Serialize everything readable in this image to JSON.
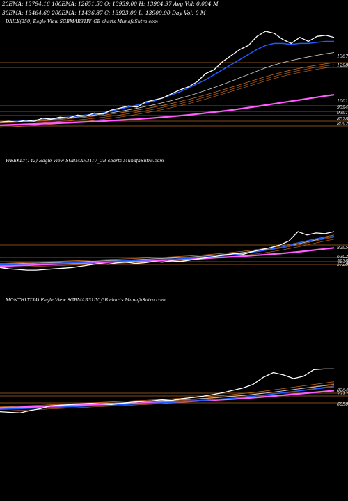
{
  "header": {
    "line1": "20EMA: 13794.16   100EMA: 12651.53   O: 13939.00   H: 13984.97  Avg Vol: 0.004 M",
    "line2": "30EMA: 13464.69   200EMA: 11436.87   C: 13923.00   L: 13900.00   Day Vol: 0  M"
  },
  "colors": {
    "background": "#000000",
    "price": "#ffffff",
    "ema_blue": "#1e5bff",
    "ema_magenta": "#ff5cff",
    "ema_band": "#c86a1e",
    "ema_light": "#d8d8d8",
    "level_line": "#b0661e"
  },
  "chart_data": [
    {
      "type": "line",
      "title": "DAILY(250) Eagle  View  SGBMAR31IV_GB charts MunafaSutra.com",
      "levels": [
        "1367",
        "1298",
        "1001",
        "9594",
        "9391",
        "8528",
        "8092"
      ],
      "series": [
        {
          "role": "price",
          "values": [
            10,
            11,
            10,
            12,
            11,
            14,
            13,
            15,
            14,
            17,
            16,
            19,
            18,
            22,
            24,
            26,
            25,
            30,
            32,
            34,
            38,
            42,
            45,
            50,
            58,
            62,
            70,
            76,
            82,
            86,
            95,
            100,
            98,
            92,
            88,
            94,
            90,
            95,
            96,
            94
          ]
        },
        {
          "role": "ema-blue",
          "values": [
            10,
            10.5,
            10.8,
            11.5,
            12,
            13,
            13.5,
            14.5,
            15,
            16,
            17,
            18,
            19,
            21,
            23,
            25,
            27,
            29,
            31,
            34,
            37,
            40,
            44,
            48,
            52,
            57,
            62,
            67,
            72,
            77,
            82,
            86,
            88,
            88,
            87,
            88,
            88,
            89,
            90,
            90
          ]
        },
        {
          "role": "ema-magenta",
          "values": [
            7,
            7.3,
            7.6,
            7.9,
            8.2,
            8.5,
            8.8,
            9.1,
            9.4,
            9.8,
            10.2,
            10.6,
            11,
            11.5,
            12,
            12.5,
            13,
            13.6,
            14.2,
            14.9,
            15.6,
            16.4,
            17.2,
            18.1,
            19,
            20,
            21,
            22,
            23.2,
            24.4,
            25.6,
            26.9,
            28.2,
            29.5,
            30.8,
            32.1,
            33.4,
            34.7,
            36,
            37.2
          ]
        },
        {
          "role": "ema-band",
          "values": [
            9,
            9.4,
            9.8,
            10.3,
            10.8,
            11.4,
            12,
            12.7,
            13.4,
            14.2,
            15,
            15.9,
            16.8,
            18,
            19.2,
            20.5,
            21.9,
            23.4,
            25,
            26.7,
            28.5,
            30.4,
            32.5,
            34.7,
            37,
            39.5,
            42,
            44.6,
            47.2,
            49.8,
            52.4,
            55,
            57.4,
            59.6,
            61.6,
            63.4,
            65,
            66.5,
            67.8,
            69
          ]
        },
        {
          "role": "ema-light",
          "values": [
            9.5,
            9.9,
            10.3,
            10.9,
            11.4,
            12.1,
            12.7,
            13.5,
            14.2,
            15.1,
            16,
            17,
            18,
            19.3,
            20.7,
            22.2,
            23.8,
            25.5,
            27.3,
            29.3,
            31.4,
            33.6,
            36,
            38.6,
            41.4,
            44.3,
            47.4,
            50.6,
            53.9,
            57.2,
            60.5,
            63.8,
            66.6,
            69,
            71,
            72.9,
            74.6,
            76.2,
            77.7,
            79
          ]
        }
      ]
    },
    {
      "type": "line",
      "title": "WEEKLY(142) Eagle  View  SGBMAR31IV_GB charts MunafaSutra.com",
      "levels": [
        "8295",
        "6302",
        "5938",
        "5728"
      ],
      "series": [
        {
          "role": "price",
          "values": [
            6,
            4,
            3,
            2,
            2,
            3,
            4,
            5,
            6,
            8,
            10,
            12,
            11,
            13,
            14,
            12,
            13,
            15,
            14,
            16,
            15,
            17,
            19,
            21,
            23,
            25,
            27,
            26,
            30,
            33,
            36,
            40,
            46,
            60,
            55,
            58,
            57,
            60
          ]
        },
        {
          "role": "ema-blue",
          "values": [
            10,
            10,
            10.5,
            11,
            11.5,
            12,
            12,
            12.5,
            13,
            13.5,
            14,
            14.5,
            15,
            15.5,
            16,
            16.5,
            17,
            17.5,
            18,
            18.5,
            19,
            20,
            21,
            22,
            23,
            24,
            25.5,
            27,
            29,
            31,
            33.5,
            36,
            39,
            43,
            46,
            49,
            51,
            53
          ]
        },
        {
          "role": "ema-magenta",
          "values": [
            8,
            8.5,
            9,
            9.5,
            10,
            10.5,
            11,
            11.5,
            12,
            12.5,
            13,
            13.5,
            14,
            14.5,
            15,
            15.5,
            16,
            16.5,
            17,
            17.5,
            18,
            18.7,
            19.4,
            20.1,
            20.8,
            21.5,
            22.3,
            23.1,
            24,
            25,
            26,
            27,
            28.2,
            29.5,
            31,
            32.5,
            34,
            35.5
          ]
        },
        {
          "role": "ema-band",
          "values": [
            12,
            12.5,
            13,
            13.5,
            14,
            14.5,
            15,
            15.5,
            16,
            16.5,
            17,
            17.5,
            18,
            18.5,
            19,
            19.6,
            20.2,
            20.8,
            21.4,
            22,
            22.7,
            23.5,
            24.4,
            25.4,
            26.5,
            27.7,
            29,
            30.5,
            32.1,
            33.9,
            35.9,
            38.1,
            40.6,
            43.4,
            46.4,
            49.4,
            52.3,
            55
          ]
        },
        {
          "role": "ema-light",
          "values": [
            11,
            11.4,
            11.8,
            12.2,
            12.6,
            13,
            13.4,
            13.8,
            14.3,
            14.8,
            15.3,
            15.8,
            16.3,
            16.8,
            17.3,
            17.8,
            18.4,
            19,
            19.6,
            20.2,
            20.9,
            21.7,
            22.6,
            23.6,
            24.7,
            25.9,
            27.2,
            28.7,
            30.3,
            32.1,
            34.1,
            36.3,
            38.8,
            41.6,
            44.6,
            47.6,
            50.5,
            53.2
          ]
        }
      ]
    },
    {
      "type": "line",
      "title": "MONTHLY(34) Eagle  View  SGBMAR31IV_GB charts MunafaSutra.com",
      "levels": [
        "8264",
        "7717",
        "6050"
      ],
      "series": [
        {
          "role": "price",
          "values": [
            4,
            3,
            2,
            6,
            9,
            14,
            15,
            16,
            17,
            18,
            17,
            16,
            18,
            20,
            21,
            22,
            24,
            23,
            26,
            28,
            30,
            33,
            36,
            40,
            44,
            50,
            62,
            70,
            66,
            60,
            64,
            75,
            76,
            76
          ]
        },
        {
          "role": "ema-blue",
          "values": [
            8,
            8.5,
            9,
            9.6,
            10.2,
            10.9,
            11.6,
            12.3,
            13,
            13.7,
            14.4,
            15.1,
            15.8,
            16.6,
            17.4,
            18.2,
            19,
            19.9,
            20.8,
            21.8,
            22.9,
            24.1,
            25.4,
            26.8,
            28.4,
            30.1,
            32,
            34,
            36,
            38,
            40,
            42,
            44,
            46
          ]
        },
        {
          "role": "ema-magenta",
          "values": [
            10,
            10.6,
            11.2,
            11.8,
            12.4,
            13,
            13.6,
            14.2,
            14.8,
            15.4,
            16,
            16.6,
            17.2,
            17.8,
            18.4,
            19,
            19.7,
            20.4,
            21.1,
            21.8,
            22.6,
            23.4,
            24.3,
            25.3,
            26.4,
            27.6,
            29,
            30.5,
            32,
            33.5,
            35,
            36.5,
            38,
            39.5
          ]
        },
        {
          "role": "ema-band",
          "values": [
            12,
            12.7,
            13.4,
            14.1,
            14.8,
            15.6,
            16.4,
            17.2,
            18,
            18.8,
            19.6,
            20.4,
            21.2,
            22,
            22.8,
            23.7,
            24.6,
            25.6,
            26.6,
            27.7,
            28.9,
            30.2,
            31.6,
            33.1,
            34.7,
            36.5,
            38.5,
            40.7,
            43,
            45.3,
            47.6,
            49.9,
            52.2,
            54.5
          ]
        },
        {
          "role": "ema-light",
          "values": [
            11,
            11.6,
            12.2,
            12.8,
            13.4,
            14.1,
            14.8,
            15.5,
            16.2,
            16.9,
            17.6,
            18.3,
            19,
            19.8,
            20.6,
            21.4,
            22.3,
            23.2,
            24.2,
            25.2,
            26.3,
            27.5,
            28.8,
            30.2,
            31.7,
            33.3,
            35.1,
            37.1,
            39.2,
            41.3,
            43.4,
            45.5,
            47.6,
            49.7
          ]
        }
      ]
    }
  ]
}
